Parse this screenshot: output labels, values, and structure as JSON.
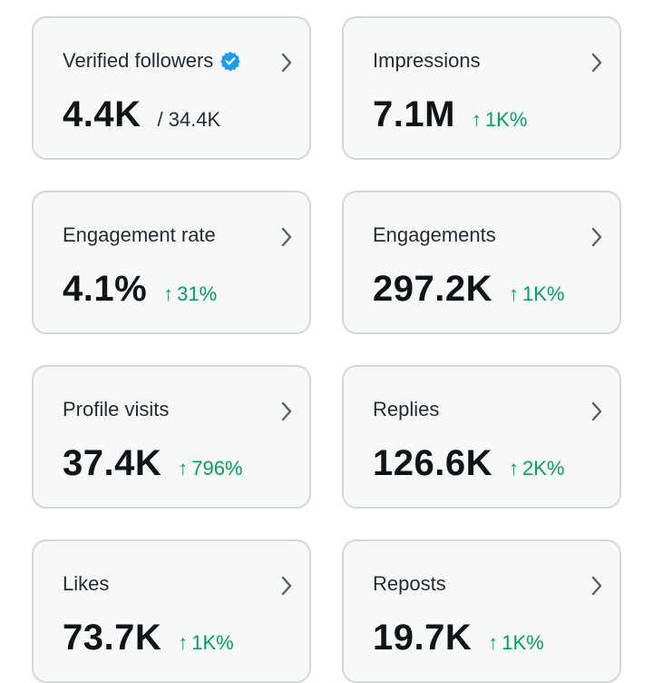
{
  "colors": {
    "card_background": "#f7f9f9",
    "card_border": "#cfd9de",
    "value_text": "#0f1419",
    "label_text": "#1f2b36",
    "positive_change": "#00a35c",
    "verified_badge": "#1d9bf0",
    "chevron": "#536471"
  },
  "cards": [
    {
      "title": "Verified followers",
      "icon": "verified-badge-icon",
      "value": "4.4K",
      "total": "/ 34.4K"
    },
    {
      "title": "Impressions",
      "value": "7.1M",
      "arrow": "↑",
      "change": "1K%"
    },
    {
      "title": "Engagement rate",
      "value": "4.1%",
      "arrow": "↑",
      "change": "31%"
    },
    {
      "title": "Engagements",
      "value": "297.2K",
      "arrow": "↑",
      "change": "1K%"
    },
    {
      "title": "Profile visits",
      "value": "37.4K",
      "arrow": "↑",
      "change": "796%"
    },
    {
      "title": "Replies",
      "value": "126.6K",
      "arrow": "↑",
      "change": "2K%"
    },
    {
      "title": "Likes",
      "value": "73.7K",
      "arrow": "↑",
      "change": "1K%"
    },
    {
      "title": "Reposts",
      "value": "19.7K",
      "arrow": "↑",
      "change": "1K%"
    }
  ]
}
